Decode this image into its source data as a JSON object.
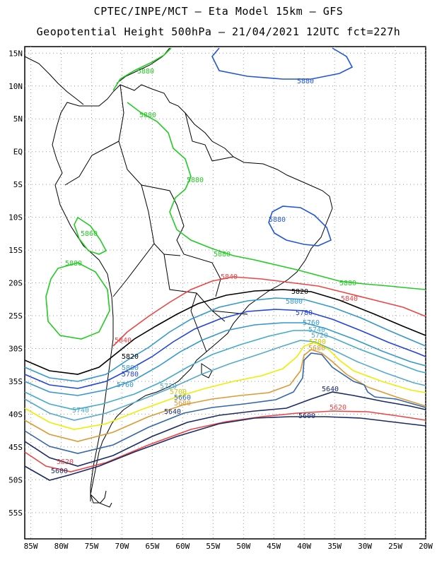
{
  "header": {
    "line1": "CPTEC/INPE/MCT –  Eta Model 15km – GFS",
    "line2": "Geopotential Height 500hPa – 21/04/2021 12UTC fct=227h"
  },
  "map": {
    "lon_range": [
      -86,
      -20
    ],
    "lat_range": [
      -59,
      16
    ],
    "lon_ticks": [
      "85W",
      "80W",
      "75W",
      "70W",
      "65W",
      "60W",
      "55W",
      "50W",
      "45W",
      "40W",
      "35W",
      "30W",
      "25W",
      "20W"
    ],
    "lat_ticks": [
      "15N",
      "10N",
      "5N",
      "EQ",
      "5S",
      "10S",
      "15S",
      "20S",
      "25S",
      "30S",
      "35S",
      "40S",
      "45S",
      "50S",
      "55S"
    ]
  },
  "contours": [
    {
      "value": "5880",
      "color": "#22cc22",
      "labels": [
        "5880",
        "5880",
        "5880",
        "5880",
        "5880",
        "5880"
      ]
    },
    {
      "value": "5880",
      "color": "#2255dd",
      "labels": [
        "5880",
        "5880"
      ]
    },
    {
      "value": "5860",
      "color": "#22cc22",
      "labels": [
        "5860"
      ]
    },
    {
      "value": "5840",
      "color": "#ee4444",
      "labels": [
        "5840",
        "5840",
        "5840"
      ]
    },
    {
      "value": "5820",
      "color": "#000000",
      "labels": [
        "5820",
        "5820"
      ]
    },
    {
      "value": "5800",
      "color": "#3399cc",
      "labels": [
        "5800",
        "5800"
      ]
    },
    {
      "value": "5780",
      "color": "#2244dd",
      "labels": [
        "5780",
        "5780"
      ]
    },
    {
      "value": "5760",
      "color": "#3399cc",
      "labels": [
        "5760",
        "5760"
      ]
    },
    {
      "value": "5740",
      "color": "#44aacc",
      "labels": [
        "5740",
        "5740"
      ]
    },
    {
      "value": "5720",
      "color": "#55aacc",
      "labels": [
        "5720",
        "5720"
      ]
    },
    {
      "value": "5700",
      "color": "#eeee00",
      "labels": [
        "5700",
        "5700"
      ]
    },
    {
      "value": "5680",
      "color": "#dd9933",
      "labels": [
        "5680",
        "5680"
      ]
    },
    {
      "value": "5660",
      "color": "#3366aa",
      "labels": [
        "5660"
      ]
    },
    {
      "value": "5640",
      "color": "#1a2a66",
      "labels": [
        "5640",
        "5640"
      ]
    },
    {
      "value": "5620",
      "color": "#ee4444",
      "labels": [
        "5620",
        "5620"
      ]
    },
    {
      "value": "5600",
      "color": "#1a2a66",
      "labels": [
        "5600",
        "5600"
      ]
    }
  ]
}
